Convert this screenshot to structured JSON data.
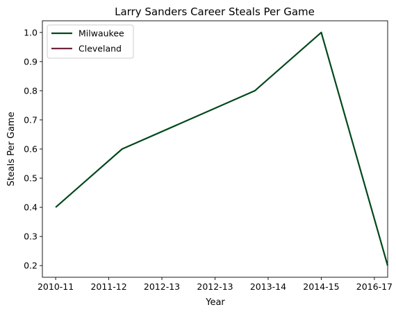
{
  "chart_data": {
    "type": "line",
    "title": "Larry Sanders  Career Steals Per Game",
    "xlabel": "Year",
    "ylabel": "Steals Per Game",
    "x_tick_labels": [
      "2010-11",
      "2011-12",
      "2012-13",
      "2012-13",
      "2013-14",
      "2014-15",
      "2016-17"
    ],
    "x_range": [
      -0.25,
      6.25
    ],
    "ylim": [
      0.16,
      1.04
    ],
    "y_ticks": [
      0.2,
      0.3,
      0.4,
      0.5,
      0.6,
      0.7,
      0.8,
      0.9,
      1.0
    ],
    "y_tick_labels": [
      "0.2",
      "0.3",
      "0.4",
      "0.5",
      "0.6",
      "0.7",
      "0.8",
      "0.9",
      "1.0"
    ],
    "grid": false,
    "legend_position": "top-left",
    "series": [
      {
        "name": "Milwaukee",
        "color": "#00471B",
        "points": [
          {
            "x": 0,
            "y": 0.4
          },
          {
            "x": 1.25,
            "y": 0.6
          },
          {
            "x": 3.75,
            "y": 0.8
          },
          {
            "x": 5,
            "y": 1.0
          },
          {
            "x": 6.25,
            "y": 0.2
          }
        ]
      },
      {
        "name": "Cleveland",
        "color": "#6F263D",
        "points": []
      }
    ]
  }
}
